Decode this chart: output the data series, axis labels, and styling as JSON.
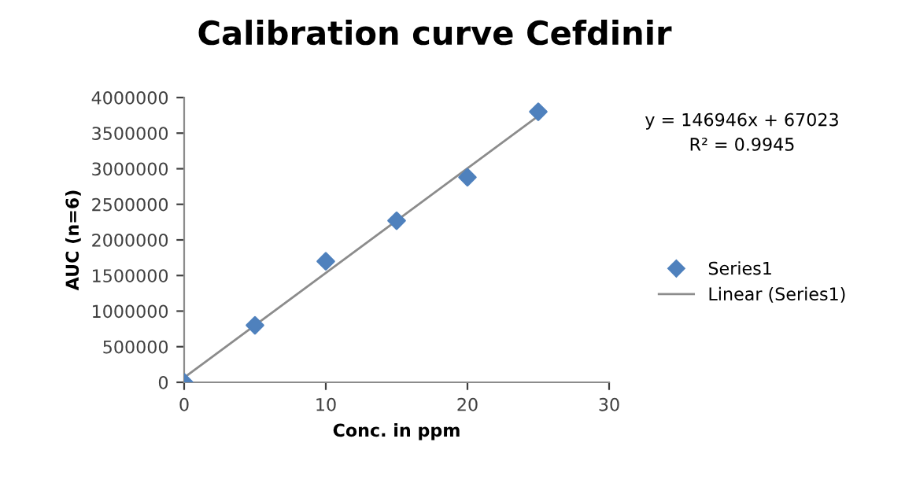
{
  "chart_data": {
    "type": "scatter",
    "title": "Calibration curve Cefdinir",
    "xlabel": "Conc. in ppm",
    "ylabel": "AUC (n=6)",
    "x": [
      0,
      5,
      10,
      15,
      20,
      25
    ],
    "series": [
      {
        "name": "Series1",
        "color": "#4f81bd",
        "marker": "diamond",
        "values": [
          0,
          800000,
          1700000,
          2270000,
          2880000,
          3800000
        ]
      },
      {
        "name": "Linear (Series1)",
        "type": "line",
        "color": "#8c8c8c",
        "x": [
          0,
          25
        ],
        "values": [
          67023,
          3740673
        ]
      }
    ],
    "annotations": [
      "y = 146946x + 67023",
      "R² = 0.9945"
    ],
    "xlim": [
      0,
      30
    ],
    "xticks": [
      0,
      10,
      20,
      30
    ],
    "ylim": [
      0,
      4000000
    ],
    "yticks": [
      0,
      500000,
      1000000,
      1500000,
      2000000,
      2500000,
      3000000,
      3500000,
      4000000
    ],
    "grid": false,
    "legend": "right"
  }
}
